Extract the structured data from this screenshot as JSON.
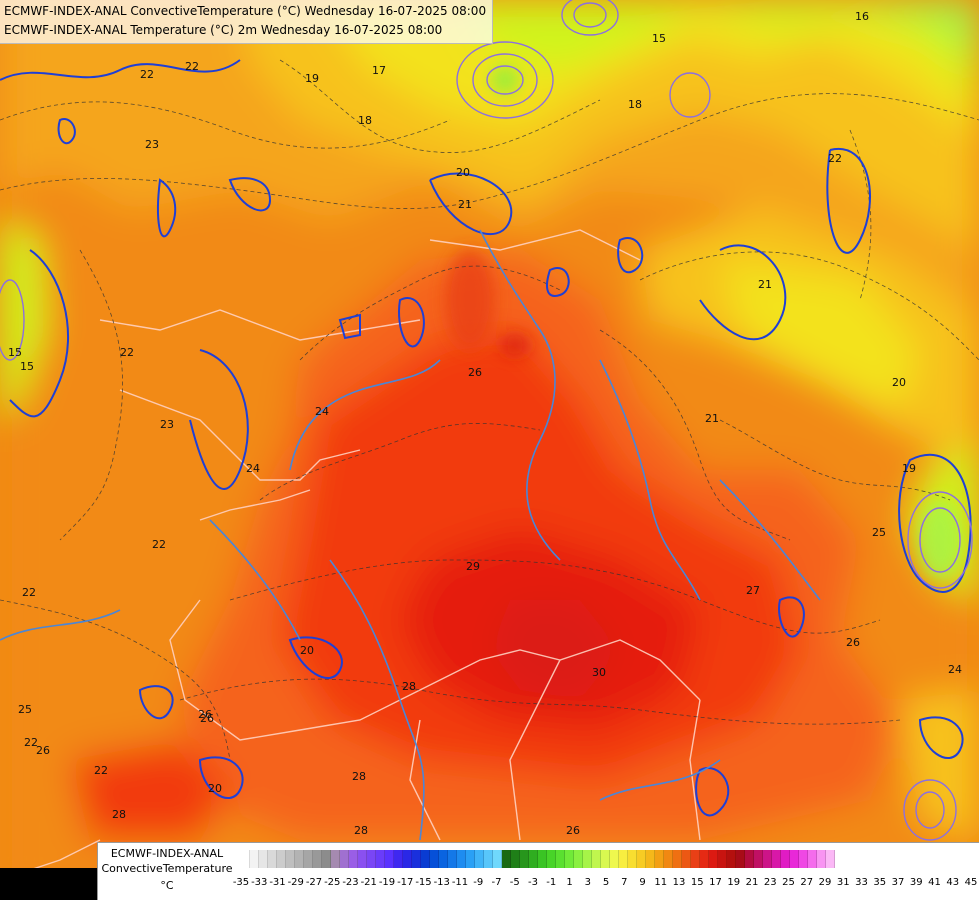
{
  "titles": {
    "line1": "ECMWF-INDEX-ANAL ConvectiveTemperature (°C) Wednesday 16-07-2025 08:00",
    "line2": "ECMWF-INDEX-ANAL Temperature (°C) 2m Wednesday 16-07-2025 08:00"
  },
  "map": {
    "contour_labels": [
      "22",
      "22",
      "23",
      "19",
      "18",
      "17",
      "15",
      "16",
      "18",
      "20",
      "21",
      "22",
      "22",
      "23",
      "15",
      "22",
      "24",
      "26",
      "21",
      "20",
      "19",
      "22",
      "25",
      "26",
      "29",
      "28",
      "26",
      "30",
      "28",
      "27",
      "26",
      "24",
      "25",
      "26",
      "28",
      "20",
      "22",
      "26",
      "28",
      "20",
      "24",
      "22",
      "15",
      "21"
    ],
    "colors": {
      "red_deep": "#e51d10",
      "red": "#f23a10",
      "orange_red": "#f5641a",
      "orange": "#f28a14",
      "amber": "#f5a51a",
      "yellow_orange": "#f7c21f",
      "yellow": "#f3e21a",
      "yellow_green": "#cff51c",
      "contour_blue": "#1f3fd6",
      "contour_lightblue": "#4a86d8",
      "contour_purple": "#8c6fe0",
      "border": "#ffd0c0"
    }
  },
  "legend": {
    "label": "ECMWF-INDEX-ANAL ConvectiveTemperature",
    "unit": "°C",
    "ticks": [
      "-35",
      "-33",
      "-31",
      "-29",
      "-27",
      "-25",
      "-23",
      "-21",
      "-19",
      "-17",
      "-15",
      "-13",
      "-11",
      "-9",
      "-7",
      "-5",
      "-3",
      "-1",
      "1",
      "3",
      "5",
      "7",
      "9",
      "11",
      "13",
      "15",
      "17",
      "19",
      "21",
      "23",
      "25",
      "27",
      "29",
      "31",
      "33",
      "35",
      "37",
      "39",
      "41",
      "43",
      "45"
    ],
    "colors": [
      "#ffffff",
      "#f3f3f3",
      "#e6e6e6",
      "#d9d9d9",
      "#cccccc",
      "#bfbfbf",
      "#b3b3b3",
      "#a6a6a6",
      "#999999",
      "#8c8c8c",
      "#a58ab0",
      "#a070d0",
      "#9a5ee6",
      "#8a50f0",
      "#7a46f5",
      "#6a3cfa",
      "#5a32ff",
      "#3f28f0",
      "#2a28e6",
      "#1a30dc",
      "#0a3cd2",
      "#0650d8",
      "#0a64e0",
      "#1478e8",
      "#1e8cf0",
      "#2aa0f5",
      "#40b4f8",
      "#58c6fa",
      "#70d8fc",
      "#1a6a14",
      "#1f7f18",
      "#27961c",
      "#2fad20",
      "#3ac424",
      "#48d428",
      "#5ae030",
      "#70ea38",
      "#8af040",
      "#a6f448",
      "#c0f64e",
      "#d8f850",
      "#eef84e",
      "#f8ee40",
      "#f8de30",
      "#f7cc24",
      "#f5b81a",
      "#f3a014",
      "#f18812",
      "#ef7012",
      "#ec5814",
      "#e94016",
      "#e52a14",
      "#dc1a12",
      "#c81410",
      "#b4100e",
      "#a80c18",
      "#b40c40",
      "#c01064",
      "#cc1488",
      "#d818a8",
      "#e01cc4",
      "#e828d8",
      "#ef48e4",
      "#f46cec",
      "#f894f2",
      "#fbb8f6"
    ]
  }
}
